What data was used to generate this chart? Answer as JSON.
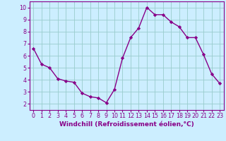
{
  "x": [
    0,
    1,
    2,
    3,
    4,
    5,
    6,
    7,
    8,
    9,
    10,
    11,
    12,
    13,
    14,
    15,
    16,
    17,
    18,
    19,
    20,
    21,
    22,
    23
  ],
  "y": [
    6.6,
    5.3,
    5.0,
    4.1,
    3.9,
    3.8,
    2.9,
    2.6,
    2.5,
    2.1,
    3.2,
    5.8,
    7.5,
    8.3,
    10.0,
    9.4,
    9.4,
    8.8,
    8.4,
    7.5,
    7.5,
    6.1,
    4.5,
    3.7
  ],
  "line_color": "#880088",
  "marker": "D",
  "marker_size": 2.2,
  "linewidth": 1.0,
  "bg_color": "#cceeff",
  "grid_color": "#99cccc",
  "xlabel": "Windchill (Refroidissement éolien,°C)",
  "xlim": [
    -0.5,
    23.5
  ],
  "ylim": [
    1.5,
    10.5
  ],
  "yticks": [
    2,
    3,
    4,
    5,
    6,
    7,
    8,
    9,
    10
  ],
  "xticks": [
    0,
    1,
    2,
    3,
    4,
    5,
    6,
    7,
    8,
    9,
    10,
    11,
    12,
    13,
    14,
    15,
    16,
    17,
    18,
    19,
    20,
    21,
    22,
    23
  ],
  "tick_fontsize": 5.8,
  "xlabel_fontsize": 6.5,
  "label_color": "#880088",
  "spine_color": "#880088"
}
